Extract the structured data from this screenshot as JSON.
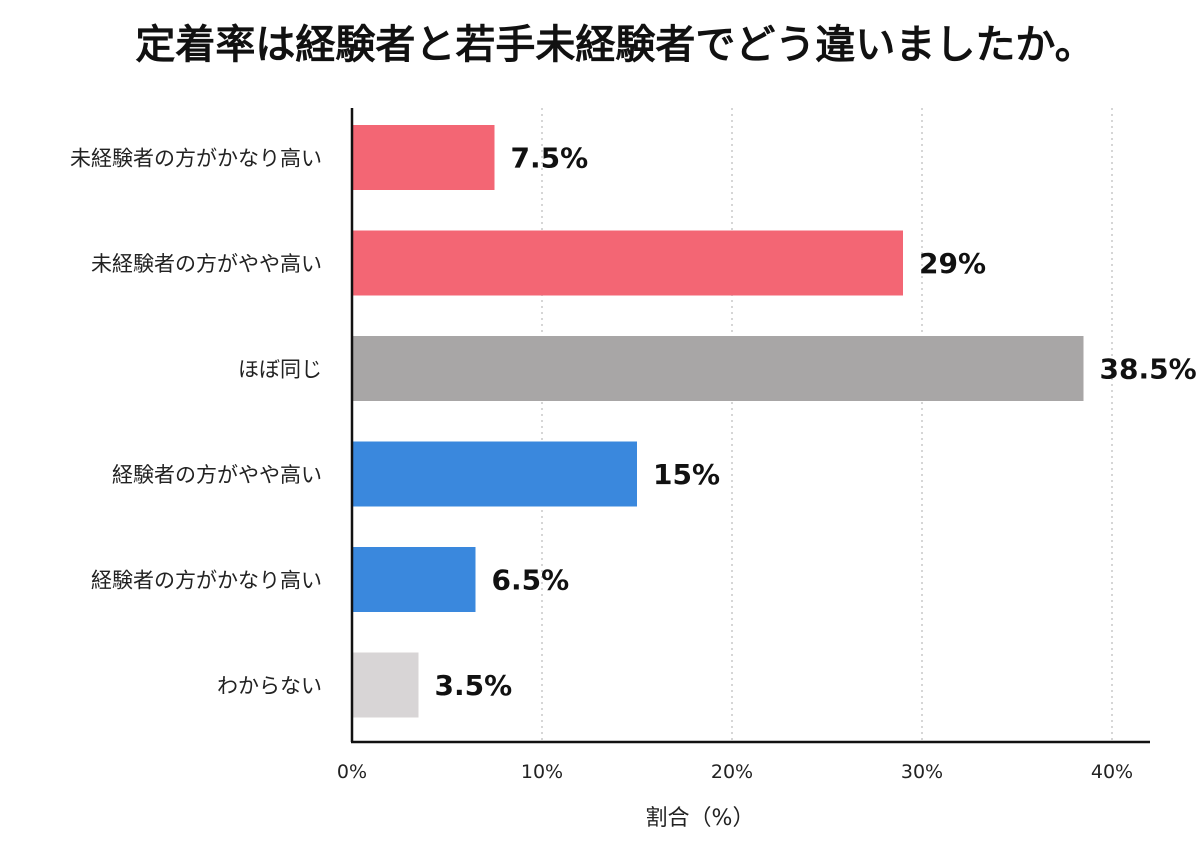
{
  "chart_data": {
    "type": "bar",
    "orientation": "horizontal",
    "title": "定着率は経験者と若手未経験者でどう違いましたか。",
    "xlabel": "割合（%）",
    "ylabel": "",
    "xlim": [
      0,
      40
    ],
    "x_ticks": [
      {
        "value": 0,
        "label": "0%"
      },
      {
        "value": 10,
        "label": "10%"
      },
      {
        "value": 20,
        "label": "20%"
      },
      {
        "value": 30,
        "label": "30%"
      },
      {
        "value": 40,
        "label": "40%"
      }
    ],
    "grid": "vertical dotted",
    "categories": [
      "未経験者の方がかなり高い",
      "未経験者の方がやや高い",
      "ほぼ同じ",
      "経験者の方がやや高い",
      "経験者の方がかなり高い",
      "わからない"
    ],
    "values": [
      7.5,
      29,
      38.5,
      15,
      6.5,
      3.5
    ],
    "value_labels": [
      "7.5%",
      "29%",
      "38.5%",
      "15%",
      "6.5%",
      "3.5%"
    ],
    "colors": [
      "#f36674",
      "#f36674",
      "#a8a6a6",
      "#3a88dd",
      "#3a88dd",
      "#d8d5d6"
    ]
  }
}
